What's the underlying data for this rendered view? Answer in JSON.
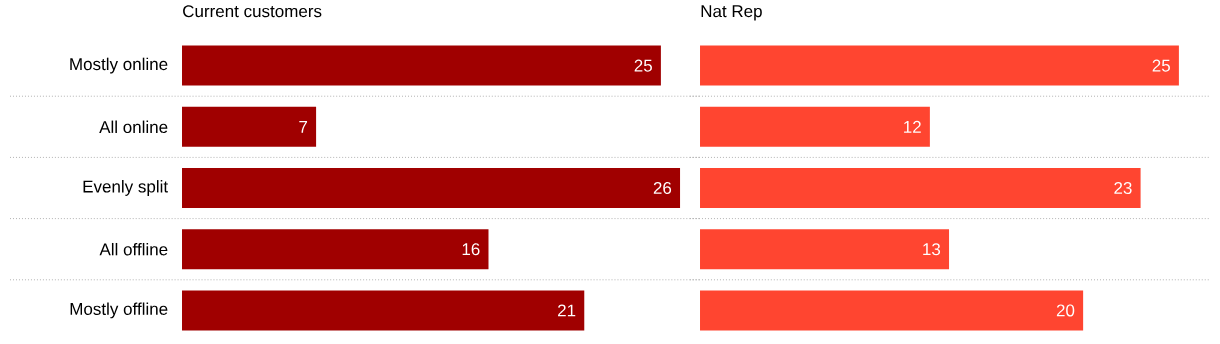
{
  "chart_data": [
    {
      "type": "bar",
      "orientation": "horizontal",
      "title": "Current customers",
      "categories": [
        "Mostly online",
        "All online",
        "Evenly split",
        "All offline",
        "Mostly offline"
      ],
      "values": [
        25,
        7,
        26,
        16,
        21
      ],
      "color": "#a00000",
      "data_labels": true,
      "grid": "y",
      "tick_labels": "y"
    },
    {
      "type": "bar",
      "orientation": "horizontal",
      "title": "Nat Rep",
      "categories": [
        null,
        null,
        null,
        null,
        null
      ],
      "values": [
        25,
        12,
        23,
        13,
        20
      ],
      "color": "#ff4530",
      "data_labels": true,
      "grid": "y",
      "tick_labels": false
    }
  ]
}
